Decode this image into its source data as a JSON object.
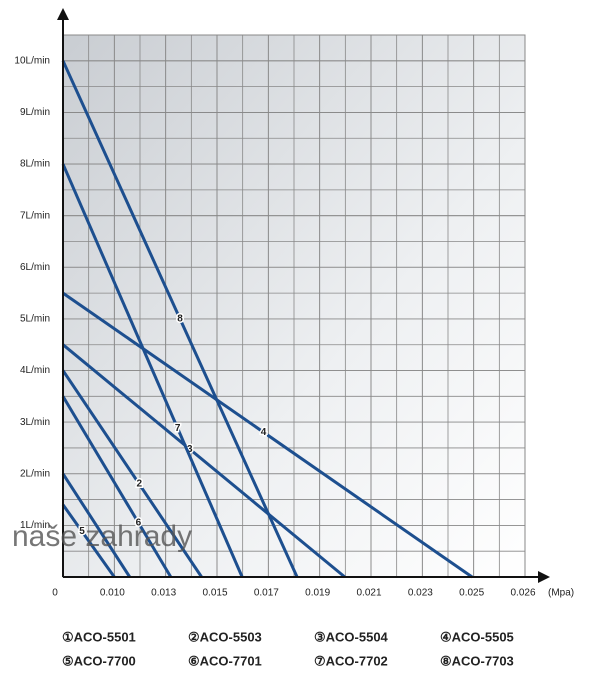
{
  "chart_data": {
    "type": "line",
    "x_axis_label": "(Mpa)",
    "watermark": "naše zahrady",
    "xlim": [
      0,
      9
    ],
    "xticks": [
      0,
      {
        "value": 1,
        "label": "0.010"
      },
      {
        "value": 2,
        "label": "0.013"
      },
      {
        "value": 3,
        "label": "0.015"
      },
      {
        "value": 4,
        "label": "0.017"
      },
      {
        "value": 5,
        "label": "0.019"
      },
      {
        "value": 6,
        "label": "0.021"
      },
      {
        "value": 7,
        "label": "0.023"
      },
      {
        "value": 8,
        "label": "0.025"
      },
      {
        "value": 9,
        "label": "0.026"
      }
    ],
    "ylim": [
      0,
      10.5
    ],
    "yticks": [
      {
        "value": 1,
        "label": "1L/min"
      },
      {
        "value": 2,
        "label": "2L/min"
      },
      {
        "value": 3,
        "label": "3L/min"
      },
      {
        "value": 4,
        "label": "4L/min"
      },
      {
        "value": 5,
        "label": "5L/min"
      },
      {
        "value": 6,
        "label": "6L/min"
      },
      {
        "value": 7,
        "label": "7L/min"
      },
      {
        "value": 8,
        "label": "8L/min"
      },
      {
        "value": 9,
        "label": "9L/min"
      },
      {
        "value": 10,
        "label": "10L/min"
      }
    ],
    "grid": true,
    "series": [
      {
        "name": "①ACO-5501",
        "color": "#1d4f8f",
        "x": [
          0,
          1.3
        ],
        "values": [
          2,
          0
        ]
      },
      {
        "name": "②ACO-5503",
        "color": "#1d4f8f",
        "x": [
          0,
          2.7
        ],
        "values": [
          4,
          0
        ],
        "line_label": "2"
      },
      {
        "name": "③ACO-5504",
        "color": "#1d4f8f",
        "x": [
          0,
          5.49
        ],
        "values": [
          4.5,
          0
        ],
        "line_label": "3"
      },
      {
        "name": "④ACO-5505",
        "color": "#1d4f8f",
        "x": [
          0,
          7.97
        ],
        "values": [
          5.5,
          0
        ],
        "line_label": "4"
      },
      {
        "name": "⑤ACO-7700",
        "color": "#1d4f8f",
        "x": [
          0,
          1.0
        ],
        "values": [
          1.4,
          0
        ],
        "line_label": "5"
      },
      {
        "name": "⑥ACO-7701",
        "color": "#1d4f8f",
        "x": [
          0,
          2.1
        ],
        "values": [
          3.5,
          0
        ],
        "line_label": "6"
      },
      {
        "name": "⑦ACO-7702",
        "color": "#1d4f8f",
        "x": [
          0,
          3.49
        ],
        "values": [
          8,
          0
        ],
        "line_label": "7"
      },
      {
        "name": "⑧ACO-7703",
        "color": "#1d4f8f",
        "x": [
          0,
          4.56
        ],
        "values": [
          10,
          0
        ],
        "line_label": "8"
      }
    ]
  }
}
